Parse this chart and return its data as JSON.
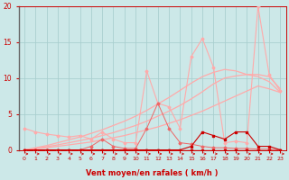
{
  "x": [
    0,
    1,
    2,
    3,
    4,
    5,
    6,
    7,
    8,
    9,
    10,
    11,
    12,
    13,
    14,
    15,
    16,
    17,
    18,
    19,
    20,
    21,
    22,
    23
  ],
  "line_jagged_light": [
    3.0,
    2.5,
    2.2,
    2.0,
    1.8,
    2.0,
    1.5,
    2.5,
    1.5,
    1.0,
    1.0,
    11.0,
    6.5,
    6.0,
    3.0,
    13.0,
    15.5,
    11.5,
    1.0,
    1.2,
    1.0,
    20.0,
    10.5,
    8.2
  ],
  "line_jagged_mid": [
    0,
    0,
    0,
    0,
    0,
    0,
    0.5,
    1.5,
    0.5,
    0.2,
    0.2,
    3.0,
    6.5,
    3.0,
    1.0,
    0.8,
    0.5,
    0.3,
    0.3,
    0.2,
    0.2,
    0.1,
    0.1,
    0.0
  ],
  "line_dark_low": [
    0,
    0,
    0,
    0,
    0,
    0,
    0,
    0,
    0,
    0,
    0,
    0,
    0,
    0,
    0,
    0.5,
    2.5,
    2.0,
    1.5,
    2.5,
    2.5,
    0.5,
    0.5,
    0.0
  ],
  "line_bottom": [
    0,
    0,
    0,
    0,
    0,
    0,
    0,
    0,
    0,
    0,
    0,
    0,
    0,
    0,
    0,
    0,
    0,
    0,
    0,
    0,
    0,
    0,
    0,
    0
  ],
  "smooth_low": [
    0,
    0.15,
    0.3,
    0.5,
    0.7,
    0.9,
    1.1,
    1.4,
    1.7,
    2.0,
    2.4,
    2.8,
    3.2,
    3.7,
    4.2,
    4.8,
    5.4,
    6.1,
    6.8,
    7.5,
    8.2,
    8.9,
    8.5,
    8.0
  ],
  "smooth_mid": [
    0,
    0.2,
    0.45,
    0.7,
    1.0,
    1.3,
    1.6,
    2.0,
    2.4,
    2.9,
    3.4,
    4.0,
    4.7,
    5.4,
    6.2,
    7.1,
    8.1,
    9.2,
    10.0,
    10.3,
    10.5,
    10.5,
    10.2,
    8.5
  ],
  "smooth_high": [
    0,
    0.3,
    0.6,
    1.0,
    1.4,
    1.8,
    2.3,
    2.8,
    3.4,
    4.0,
    4.7,
    5.5,
    6.4,
    7.3,
    8.3,
    9.3,
    10.2,
    10.8,
    11.2,
    11.0,
    10.5,
    10.2,
    9.5,
    8.0
  ],
  "bg_color": "#cce8e8",
  "grid_color": "#aacfcf",
  "color_dark": "#cc0000",
  "color_mid": "#ee6666",
  "color_light": "#ffaaaa",
  "xlabel": "Vent moyen/en rafales ( km/h )",
  "ylim": [
    0,
    20
  ],
  "xlim": [
    -0.5,
    23.5
  ]
}
